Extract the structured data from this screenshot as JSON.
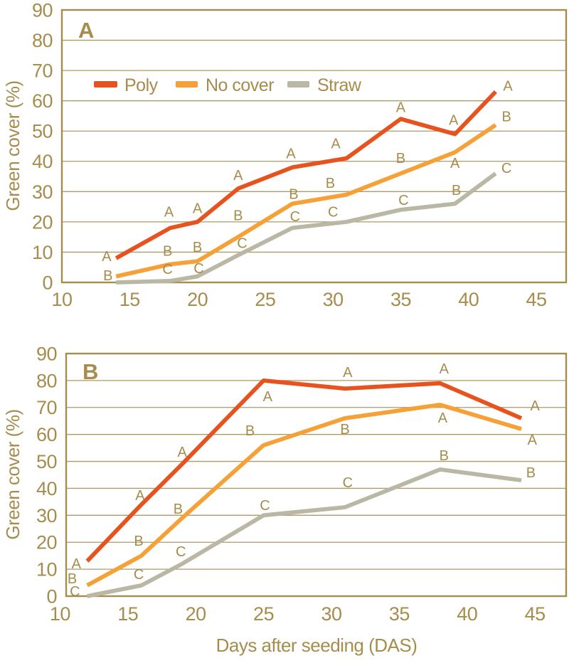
{
  "figure": {
    "colors": {
      "axis_text": "#A68C4D",
      "grid": "#AD9A66",
      "frame": "#A68C4D",
      "poly": "#E7531F",
      "no_cover": "#F6A038",
      "straw": "#BAB8A4",
      "background": "#FFFFFF"
    }
  },
  "legend": {
    "items": [
      {
        "label": "Poly",
        "color_key": "poly"
      },
      {
        "label": "No cover",
        "color_key": "no_cover"
      },
      {
        "label": "Straw",
        "color_key": "straw"
      }
    ]
  },
  "chart_data": [
    {
      "type": "line",
      "panel_label": "A",
      "xlabel": "",
      "ylabel": "Green cover (%)",
      "xlim": [
        10,
        47.2
      ],
      "ylim": [
        0,
        90
      ],
      "xticks": [
        10,
        15,
        20,
        25,
        30,
        35,
        40,
        45
      ],
      "yticks": [
        0,
        10,
        20,
        30,
        40,
        50,
        60,
        70,
        80,
        90
      ],
      "grid": "horizontal",
      "legend_position": "top-inside",
      "x": [
        14,
        18,
        20,
        23,
        27,
        31,
        35,
        39,
        42
      ],
      "series": [
        {
          "name": "Poly",
          "color_key": "poly",
          "values": [
            8,
            18,
            20,
            31,
            38,
            41,
            54,
            49,
            63
          ]
        },
        {
          "name": "No cover",
          "color_key": "no_cover",
          "values": [
            2,
            6,
            7,
            15,
            26,
            29,
            36,
            43,
            52
          ]
        },
        {
          "name": "Straw",
          "color_key": "straw",
          "values": [
            0,
            0.5,
            2,
            9,
            18,
            20,
            24,
            26,
            36
          ]
        }
      ],
      "annotations": [
        {
          "text": "A",
          "x": 13.3,
          "y": 8.7
        },
        {
          "text": "A",
          "x": 17.9,
          "y": 23.4
        },
        {
          "text": "A",
          "x": 20.0,
          "y": 24.6
        },
        {
          "text": "A",
          "x": 23.0,
          "y": 35.5
        },
        {
          "text": "A",
          "x": 26.9,
          "y": 42.6
        },
        {
          "text": "A",
          "x": 30.2,
          "y": 45.9
        },
        {
          "text": "A",
          "x": 35.0,
          "y": 57.9
        },
        {
          "text": "A",
          "x": 38.9,
          "y": 53.7
        },
        {
          "text": "A",
          "x": 42.9,
          "y": 65.0
        },
        {
          "text": "B",
          "x": 13.4,
          "y": 2.4
        },
        {
          "text": "B",
          "x": 17.8,
          "y": 10.4
        },
        {
          "text": "B",
          "x": 20.0,
          "y": 11.8
        },
        {
          "text": "B",
          "x": 23.0,
          "y": 22.2
        },
        {
          "text": "B",
          "x": 27.1,
          "y": 29.3
        },
        {
          "text": "B",
          "x": 29.8,
          "y": 32.9
        },
        {
          "text": "B",
          "x": 35.0,
          "y": 41.1
        },
        {
          "text": "A",
          "x": 39.0,
          "y": 39.5
        },
        {
          "text": "B",
          "x": 42.8,
          "y": 54.9
        },
        {
          "text": "C",
          "x": 17.8,
          "y": 4.5
        },
        {
          "text": "C",
          "x": 20.1,
          "y": 4.7
        },
        {
          "text": "C",
          "x": 23.3,
          "y": 13.0
        },
        {
          "text": "C",
          "x": 27.2,
          "y": 21.8
        },
        {
          "text": "C",
          "x": 30.0,
          "y": 23.4
        },
        {
          "text": "C",
          "x": 35.2,
          "y": 27.2
        },
        {
          "text": "B",
          "x": 39.1,
          "y": 30.5
        },
        {
          "text": "C",
          "x": 42.8,
          "y": 37.8
        }
      ]
    },
    {
      "type": "line",
      "panel_label": "B",
      "xlabel": "Days after seeding (DAS)",
      "ylabel": "Green cover (%)",
      "xlim": [
        10.45,
        47.3
      ],
      "ylim": [
        0,
        90
      ],
      "xticks": [
        10,
        15,
        20,
        25,
        30,
        35,
        40,
        45
      ],
      "yticks": [
        0,
        10,
        20,
        30,
        40,
        50,
        60,
        70,
        80,
        90
      ],
      "grid": "horizontal",
      "legend_position": "none",
      "x": [
        12,
        16,
        19,
        25,
        31,
        38,
        44
      ],
      "series": [
        {
          "name": "Poly",
          "color_key": "poly",
          "values": [
            13,
            34,
            49,
            80,
            77,
            79,
            66
          ]
        },
        {
          "name": "No cover",
          "color_key": "no_cover",
          "values": [
            4,
            15,
            29,
            56,
            66,
            71,
            62
          ]
        },
        {
          "name": "Straw",
          "color_key": "straw",
          "values": [
            0,
            4,
            12,
            30,
            33,
            47,
            43
          ]
        }
      ],
      "annotations": [
        {
          "text": "A",
          "x": 11.2,
          "y": 12.1
        },
        {
          "text": "A",
          "x": 15.9,
          "y": 37.5
        },
        {
          "text": "A",
          "x": 19.0,
          "y": 53.6
        },
        {
          "text": "A",
          "x": 25.3,
          "y": 74.1
        },
        {
          "text": "A",
          "x": 31.2,
          "y": 83.1
        },
        {
          "text": "A",
          "x": 38.3,
          "y": 84.4
        },
        {
          "text": "A",
          "x": 45.0,
          "y": 70.7
        },
        {
          "text": "B",
          "x": 10.9,
          "y": 6.6
        },
        {
          "text": "B",
          "x": 15.8,
          "y": 20.6
        },
        {
          "text": "B",
          "x": 18.7,
          "y": 32.5
        },
        {
          "text": "B",
          "x": 24.0,
          "y": 61.5
        },
        {
          "text": "B",
          "x": 31.0,
          "y": 62.0
        },
        {
          "text": "A",
          "x": 38.2,
          "y": 66.2
        },
        {
          "text": "A",
          "x": 44.8,
          "y": 58.0
        },
        {
          "text": "C",
          "x": 11.1,
          "y": 1.8
        },
        {
          "text": "C",
          "x": 15.8,
          "y": 8.2
        },
        {
          "text": "C",
          "x": 18.9,
          "y": 16.6
        },
        {
          "text": "C",
          "x": 25.1,
          "y": 33.8
        },
        {
          "text": "C",
          "x": 31.2,
          "y": 42.2
        },
        {
          "text": "B",
          "x": 38.3,
          "y": 52.2
        },
        {
          "text": "B",
          "x": 44.7,
          "y": 45.9
        }
      ]
    }
  ]
}
